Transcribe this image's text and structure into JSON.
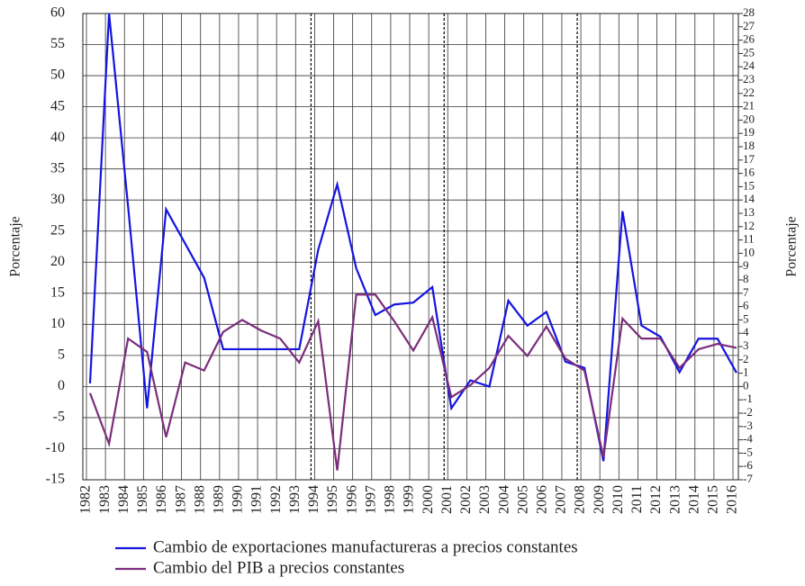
{
  "chart_data": {
    "type": "line",
    "y_label": "Porcentaje",
    "y2_label": "Porcentaje",
    "categories": [
      "1982",
      "1983",
      "1984",
      "1985",
      "1986",
      "1987",
      "1988",
      "1989",
      "1990",
      "1991",
      "1992",
      "1993",
      "1994",
      "1995",
      "1996",
      "1997",
      "1998",
      "1999",
      "2000",
      "2001",
      "2002",
      "2003",
      "2004",
      "2005",
      "2006",
      "2007",
      "2008",
      "2009",
      "2010",
      "2011",
      "2012",
      "2013",
      "2014",
      "2015",
      "2016"
    ],
    "series": [
      {
        "name": "Cambio de exportaciones manufactureras a precios constantes",
        "color": "#1414e0",
        "axis": "y",
        "values": [
          0.5,
          60,
          29,
          -3.5,
          28.5,
          23,
          17.5,
          6,
          6,
          6,
          6,
          6,
          22,
          32.5,
          19,
          11.5,
          13.2,
          13.5,
          16,
          -3.5,
          1,
          0,
          13.8,
          9.8,
          12,
          4,
          3,
          -12,
          28.2,
          9.8,
          8,
          2.3,
          7.7,
          7.7,
          2.2
        ]
      },
      {
        "name": "Cambio del PIB a precios constantes",
        "color": "#7b2d7b",
        "axis": "y2",
        "values": [
          -0.5,
          -4.3,
          3.6,
          2.6,
          -3.8,
          1.8,
          1.2,
          4.1,
          5.0,
          4.2,
          3.6,
          1.8,
          4.9,
          -6.3,
          6.9,
          6.9,
          4.9,
          2.7,
          5.2,
          -0.8,
          0.1,
          1.4,
          3.8,
          2.3,
          4.5,
          2.1,
          1.2,
          -5.3,
          5.1,
          3.6,
          3.6,
          1.4,
          2.8,
          3.2,
          2.9
        ]
      }
    ],
    "ylim": [
      -15,
      60
    ],
    "yticks": [
      -15,
      -10,
      -5,
      0,
      5,
      10,
      15,
      20,
      25,
      30,
      35,
      40,
      45,
      50,
      55,
      60
    ],
    "y2lim": [
      -7,
      28
    ],
    "y2ticks": [
      -7,
      -6,
      -5,
      -4,
      -3,
      -2,
      -1,
      0,
      1,
      2,
      3,
      4,
      5,
      6,
      7,
      8,
      9,
      10,
      11,
      12,
      13,
      14,
      15,
      16,
      17,
      18,
      19,
      20,
      21,
      22,
      23,
      24,
      25,
      26,
      27,
      28
    ],
    "grid": true,
    "period_breaks": [
      "1994",
      "2001",
      "2008"
    ]
  }
}
